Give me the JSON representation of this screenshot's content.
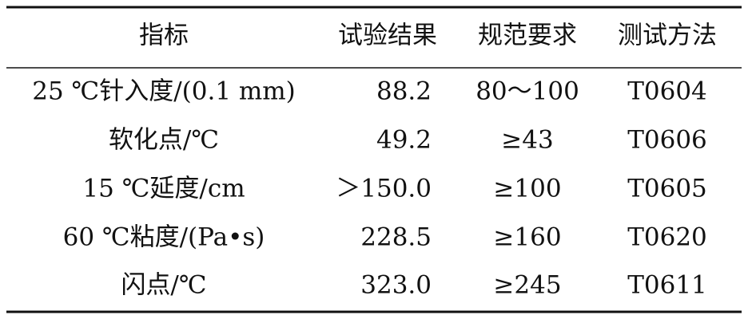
{
  "table": {
    "header": [
      "指标",
      "试验结果",
      "规范要求",
      "测试方法"
    ],
    "rows": [
      [
        "25 ℃针入度/(0.1 mm)",
        "88.2",
        "80～100",
        "T0604"
      ],
      [
        "软化点/℃",
        "49.2",
        "≥43",
        "T0606"
      ],
      [
        "15 ℃延度/cm",
        "＞150.0",
        "≥100",
        "T0605"
      ],
      [
        "60 ℃粘度/(Pa•s)",
        "228.5",
        "≥160",
        "T0620"
      ],
      [
        "闪点/℃",
        "323.0",
        "≥245",
        "T0611"
      ]
    ]
  }
}
